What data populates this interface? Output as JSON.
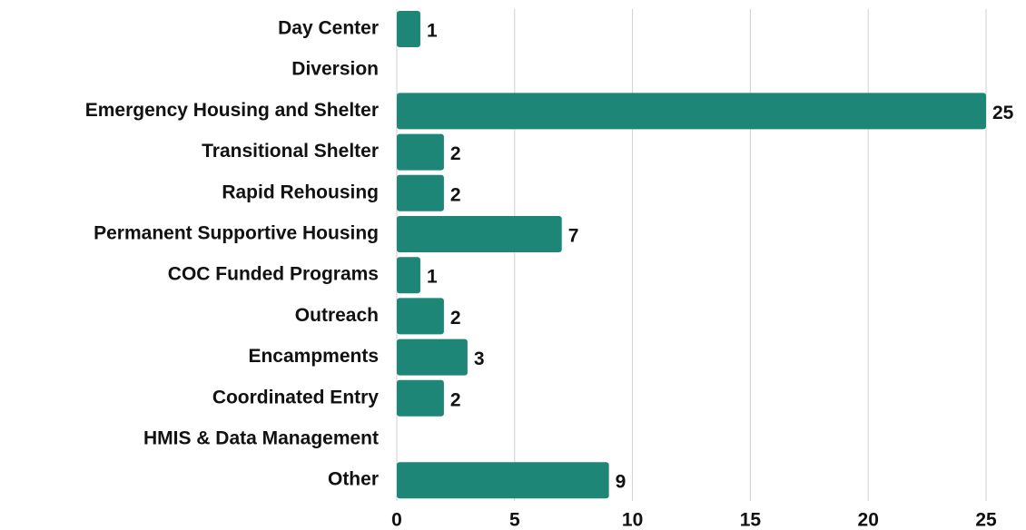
{
  "chart_data": {
    "type": "bar",
    "orientation": "horizontal",
    "categories": [
      "Day Center",
      "Diversion",
      "Emergency Housing and Shelter",
      "Transitional Shelter",
      "Rapid Rehousing",
      "Permanent Supportive Housing",
      "COC Funded Programs",
      "Outreach",
      "Encampments",
      "Coordinated Entry",
      "HMIS & Data Management",
      "Other"
    ],
    "values": [
      1,
      null,
      25,
      2,
      2,
      7,
      1,
      2,
      3,
      2,
      null,
      9
    ],
    "color": "#1e8676",
    "xlim": [
      0,
      25
    ],
    "xticks": [
      0,
      5,
      10,
      15,
      20,
      25
    ],
    "grid": true
  }
}
